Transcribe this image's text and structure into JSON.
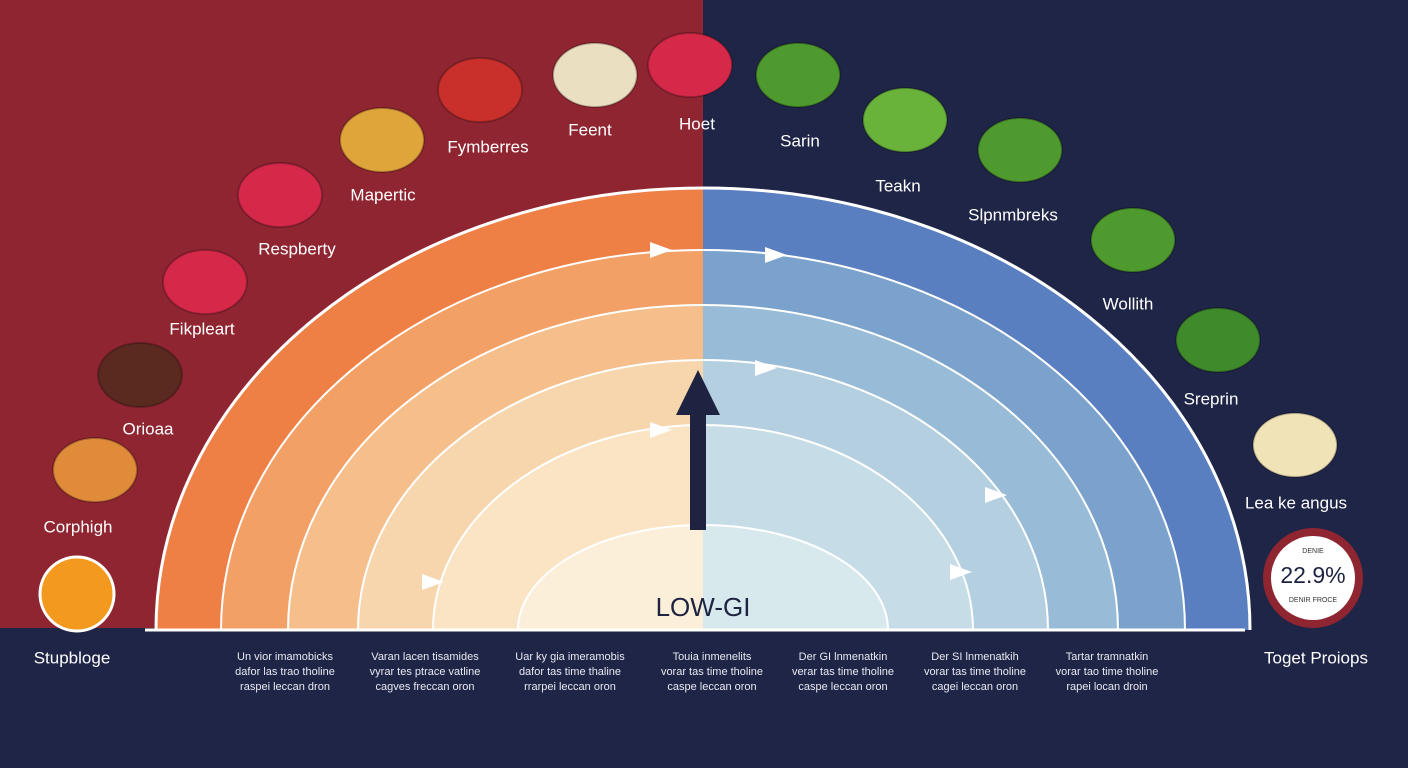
{
  "left_foods": [
    "Corphigh",
    "Orioaa",
    "Fikpleart",
    "Respberty",
    "Mapertic",
    "Fymberres",
    "Feent",
    "Hoet"
  ],
  "right_foods": [
    "Sarin",
    "Teakn",
    "Slpnmbreks",
    "Wollith",
    "Sreprin",
    "Lea ke angus"
  ],
  "center_label": "LOW-GI",
  "bottom_left": "Stupbloge",
  "bottom_right": "Toget Proiops",
  "badge": {
    "top": "DENIE",
    "value": "22.9%",
    "bottom": "DENIR FROCE"
  },
  "columns": [
    [
      "Un vior imamobicks",
      "dafor las trao tholine",
      "raspei leccan dron"
    ],
    [
      "Varan lacen tisamides",
      "vyrar tes ptrace vatline",
      "cagves freccan oron"
    ],
    [
      "Uar ky gia imeramobis",
      "dafor tas time thaline",
      "rrarpei leccan oron"
    ],
    [
      "Touia inmenelits",
      "vorar tas time tholine",
      "caspe leccan oron"
    ],
    [
      "Der GI lnmenatkin",
      "verar tas time tholine",
      "caspe leccan oron"
    ],
    [
      "Der SI lnmenatkih",
      "vorar tas time tholine",
      "cagei leccan oron"
    ],
    [
      "Tartar tramnatkin",
      "vorar tao time tholine",
      "rapei locan droin"
    ]
  ]
}
